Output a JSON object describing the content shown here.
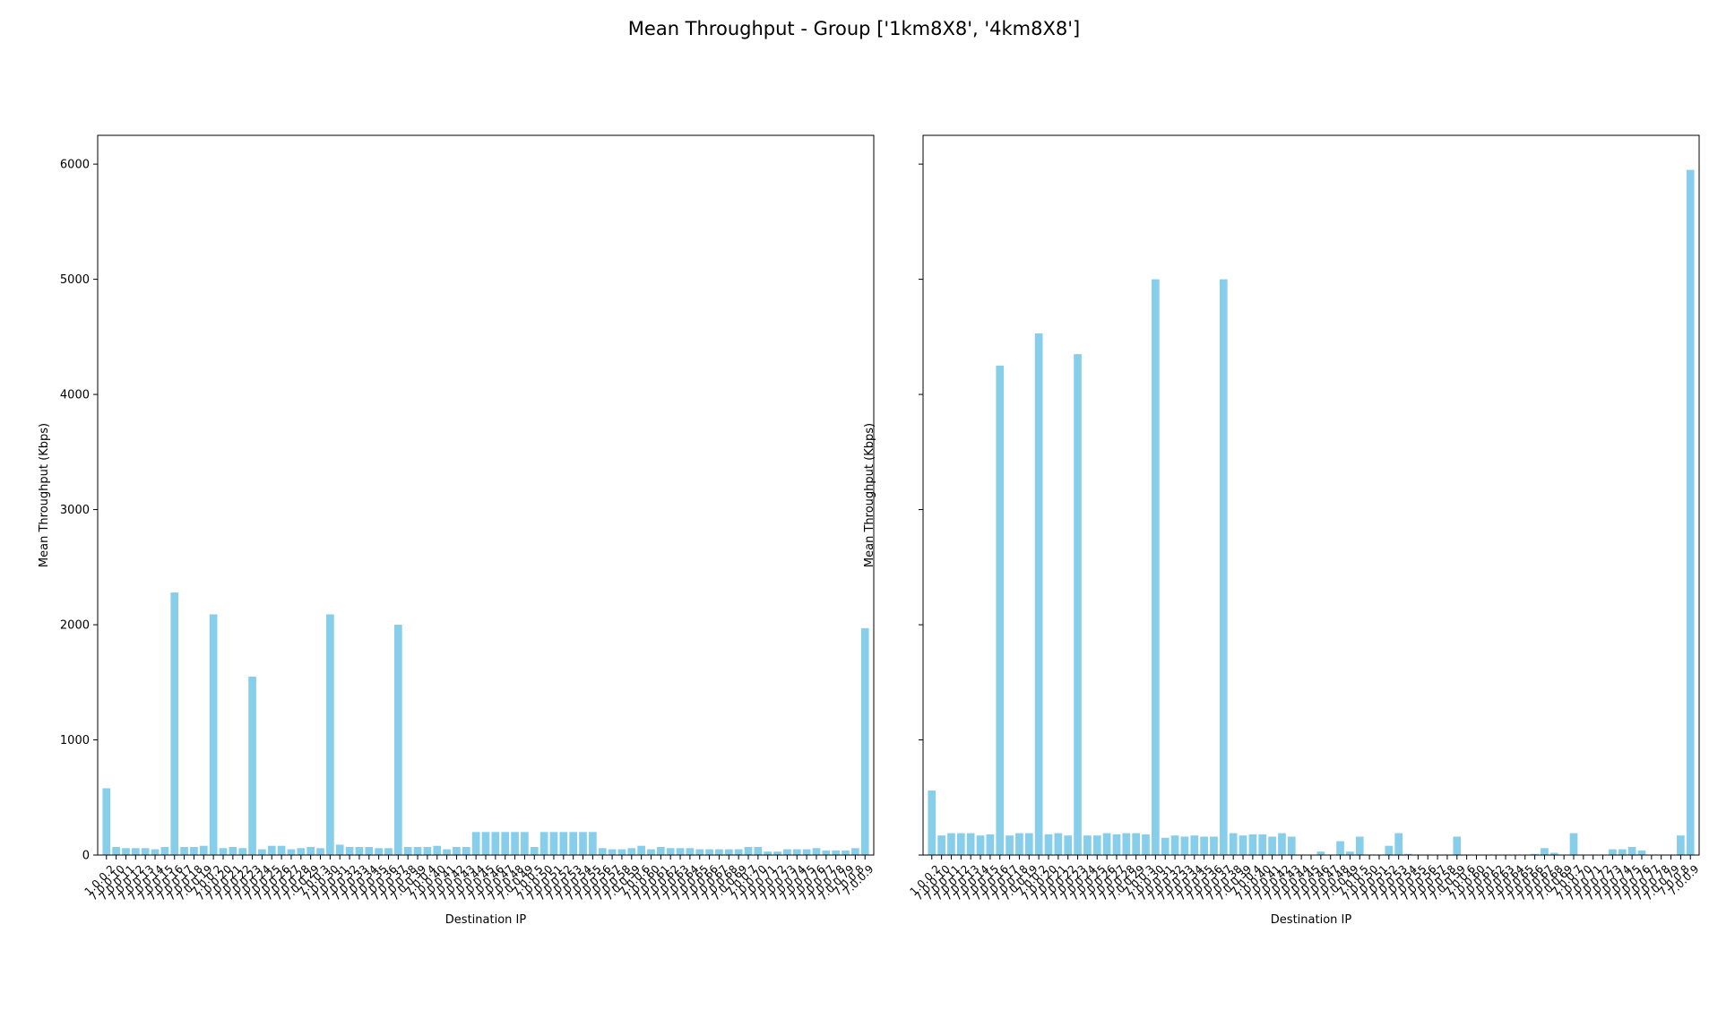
{
  "figure": {
    "title": "Mean Throughput - Group ['1km8X8', '4km8X8']"
  },
  "colors": {
    "bar": "#87ceeb",
    "axis": "#000000"
  },
  "chart_data": [
    {
      "type": "bar",
      "title": "",
      "xlabel": "Destination IP",
      "ylabel": "Mean Throughput (Kbps)",
      "ylim": [
        0,
        6250
      ],
      "yticks": [
        0,
        1000,
        2000,
        3000,
        4000,
        5000,
        6000
      ],
      "grid": false,
      "categories": [
        "1.0.0.2",
        "7.0.0.10",
        "7.0.0.11",
        "7.0.0.12",
        "7.0.0.13",
        "7.0.0.14",
        "7.0.0.15",
        "7.0.0.16",
        "7.0.0.17",
        "7.0.0.18",
        "7.0.0.19",
        "7.0.0.2",
        "7.0.0.20",
        "7.0.0.21",
        "7.0.0.22",
        "7.0.0.23",
        "7.0.0.24",
        "7.0.0.25",
        "7.0.0.26",
        "7.0.0.27",
        "7.0.0.28",
        "7.0.0.29",
        "7.0.0.3",
        "7.0.0.30",
        "7.0.0.31",
        "7.0.0.32",
        "7.0.0.33",
        "7.0.0.34",
        "7.0.0.35",
        "7.0.0.36",
        "7.0.0.37",
        "7.0.0.38",
        "7.0.0.39",
        "7.0.0.4",
        "7.0.0.40",
        "7.0.0.41",
        "7.0.0.42",
        "7.0.0.43",
        "7.0.0.44",
        "7.0.0.45",
        "7.0.0.46",
        "7.0.0.47",
        "7.0.0.48",
        "7.0.0.49",
        "7.0.0.5",
        "7.0.0.50",
        "7.0.0.51",
        "7.0.0.52",
        "7.0.0.53",
        "7.0.0.54",
        "7.0.0.55",
        "7.0.0.56",
        "7.0.0.57",
        "7.0.0.58",
        "7.0.0.59",
        "7.0.0.6",
        "7.0.0.60",
        "7.0.0.61",
        "7.0.0.62",
        "7.0.0.63",
        "7.0.0.64",
        "7.0.0.65",
        "7.0.0.66",
        "7.0.0.67",
        "7.0.0.68",
        "7.0.0.69",
        "7.0.0.7",
        "7.0.0.70",
        "7.0.0.71",
        "7.0.0.72",
        "7.0.0.73",
        "7.0.0.74",
        "7.0.0.75",
        "7.0.0.76",
        "7.0.0.77",
        "7.0.0.78",
        "7.0.0.79",
        "7.0.0.8",
        "7.0.0.9"
      ],
      "values": [
        580,
        70,
        60,
        60,
        60,
        50,
        70,
        2280,
        70,
        70,
        80,
        2090,
        60,
        70,
        60,
        1550,
        50,
        80,
        80,
        50,
        60,
        70,
        60,
        2090,
        90,
        70,
        70,
        70,
        60,
        60,
        2000,
        70,
        70,
        70,
        80,
        50,
        70,
        70,
        200,
        200,
        200,
        200,
        200,
        200,
        70,
        200,
        200,
        200,
        200,
        200,
        200,
        60,
        50,
        50,
        60,
        80,
        50,
        70,
        60,
        60,
        60,
        50,
        50,
        50,
        50,
        50,
        70,
        70,
        30,
        30,
        50,
        50,
        50,
        60,
        40,
        40,
        40,
        60,
        1970
      ]
    },
    {
      "type": "bar",
      "title": "",
      "xlabel": "Destination IP",
      "ylabel": "Mean Throughput (Kbps)",
      "ylim": [
        0,
        6250
      ],
      "yticks": [
        0,
        1000,
        2000,
        3000,
        4000,
        5000,
        6000
      ],
      "grid": false,
      "categories": [
        "1.0.0.2",
        "7.0.0.10",
        "7.0.0.11",
        "7.0.0.12",
        "7.0.0.13",
        "7.0.0.14",
        "7.0.0.15",
        "7.0.0.16",
        "7.0.0.17",
        "7.0.0.18",
        "7.0.0.19",
        "7.0.0.2",
        "7.0.0.20",
        "7.0.0.21",
        "7.0.0.22",
        "7.0.0.23",
        "7.0.0.24",
        "7.0.0.25",
        "7.0.0.26",
        "7.0.0.27",
        "7.0.0.28",
        "7.0.0.29",
        "7.0.0.3",
        "7.0.0.30",
        "7.0.0.31",
        "7.0.0.32",
        "7.0.0.33",
        "7.0.0.34",
        "7.0.0.35",
        "7.0.0.36",
        "7.0.0.37",
        "7.0.0.38",
        "7.0.0.39",
        "7.0.0.4",
        "7.0.0.40",
        "7.0.0.41",
        "7.0.0.42",
        "7.0.0.43",
        "7.0.0.44",
        "7.0.0.45",
        "7.0.0.46",
        "7.0.0.47",
        "7.0.0.48",
        "7.0.0.49",
        "7.0.0.5",
        "7.0.0.50",
        "7.0.0.51",
        "7.0.0.52",
        "7.0.0.53",
        "7.0.0.54",
        "7.0.0.55",
        "7.0.0.56",
        "7.0.0.57",
        "7.0.0.58",
        "7.0.0.59",
        "7.0.0.6",
        "7.0.0.60",
        "7.0.0.61",
        "7.0.0.62",
        "7.0.0.63",
        "7.0.0.64",
        "7.0.0.65",
        "7.0.0.66",
        "7.0.0.67",
        "7.0.0.68",
        "7.0.0.69",
        "7.0.0.7",
        "7.0.0.70",
        "7.0.0.71",
        "7.0.0.72",
        "7.0.0.73",
        "7.0.0.74",
        "7.0.0.75",
        "7.0.0.76",
        "7.0.0.77",
        "7.0.0.78",
        "7.0.0.79",
        "7.0.0.8",
        "7.0.0.9"
      ],
      "values": [
        560,
        170,
        190,
        190,
        190,
        170,
        180,
        4250,
        170,
        190,
        190,
        4530,
        180,
        190,
        170,
        4350,
        170,
        170,
        190,
        180,
        190,
        190,
        180,
        5000,
        150,
        170,
        160,
        170,
        160,
        160,
        5000,
        190,
        170,
        180,
        180,
        160,
        190,
        160,
        0,
        0,
        30,
        0,
        120,
        30,
        160,
        0,
        0,
        80,
        190,
        10,
        0,
        0,
        0,
        0,
        160,
        0,
        0,
        0,
        0,
        0,
        0,
        0,
        10,
        60,
        20,
        0,
        190,
        0,
        0,
        0,
        50,
        50,
        70,
        40,
        0,
        0,
        0,
        170,
        5950
      ]
    }
  ]
}
